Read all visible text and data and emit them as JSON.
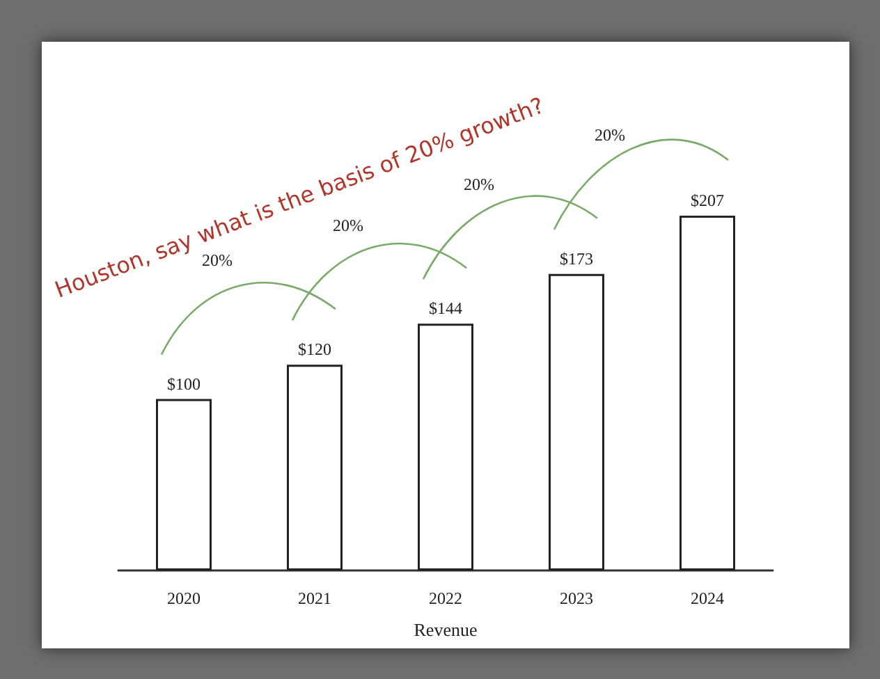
{
  "chart_data": {
    "type": "bar",
    "categories": [
      "2020",
      "2021",
      "2022",
      "2023",
      "2024"
    ],
    "values": [
      100,
      120,
      144,
      173,
      207
    ],
    "value_labels": [
      "$100",
      "$120",
      "$144",
      "$173",
      "$207"
    ],
    "color": "#ffffff",
    "xlabel": "Revenue",
    "annotations": [
      "Houston, say what is the basis of 20% growth?",
      "20%",
      "20%",
      "20%",
      "20%"
    ],
    "grid": false
  }
}
